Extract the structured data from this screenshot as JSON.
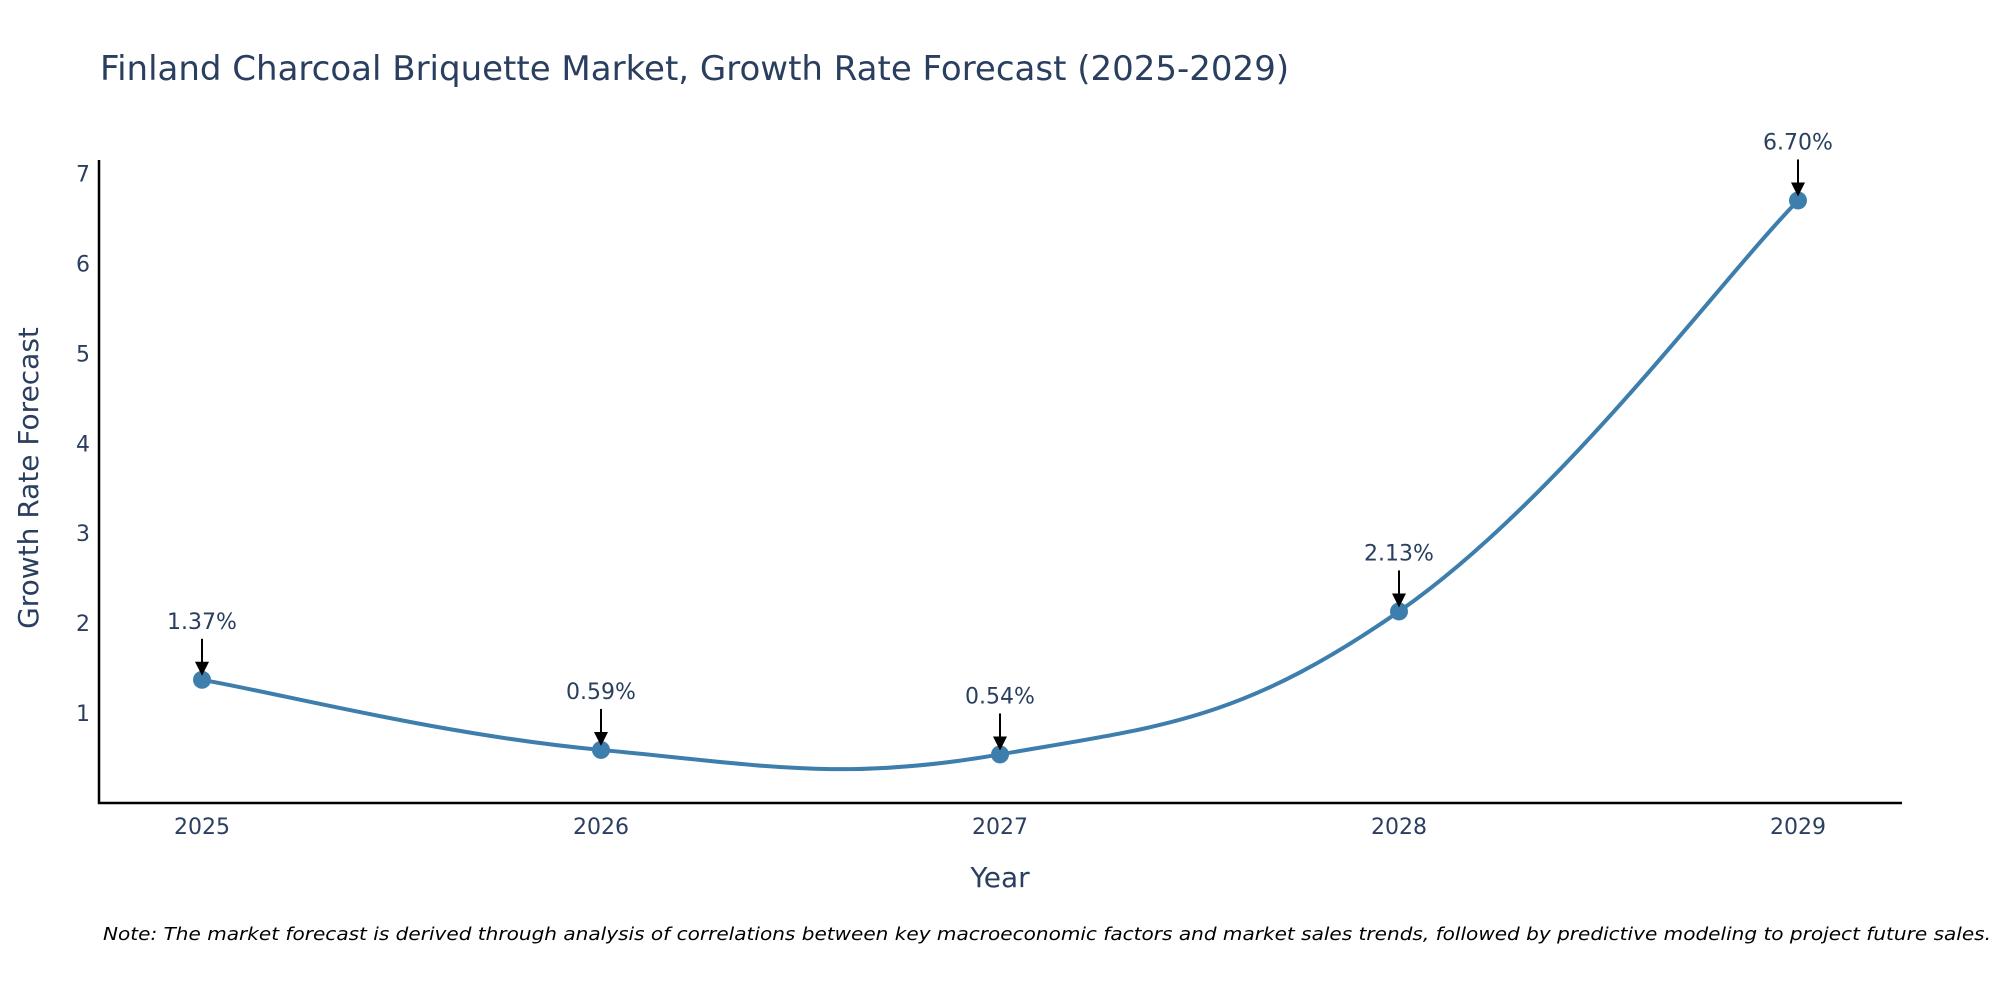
{
  "chart_data": {
    "type": "line",
    "title": "Finland Charcoal Briquette Market, Growth Rate Forecast (2025-2029)",
    "xlabel": "Year",
    "ylabel": "Growth Rate Forecast",
    "categories": [
      "2025",
      "2026",
      "2027",
      "2028",
      "2029"
    ],
    "values": [
      1.37,
      0.59,
      0.54,
      2.13,
      6.7
    ],
    "data_labels": [
      "1.37%",
      "0.59%",
      "0.54%",
      "2.13%",
      "6.70%"
    ],
    "ylim": [
      0,
      7.15
    ],
    "yticks": [
      1,
      2,
      3,
      4,
      5,
      6,
      7
    ],
    "grid": false,
    "line_shape": "spline",
    "colors": {
      "line": "#3d7eac",
      "marker": "#3d7eac",
      "arrow": "#000000",
      "text": "#2a3f5f"
    },
    "note": "Note: The market forecast is derived through analysis of correlations between key macroeconomic factors and market sales trends, followed by predictive modeling to project future sales."
  }
}
